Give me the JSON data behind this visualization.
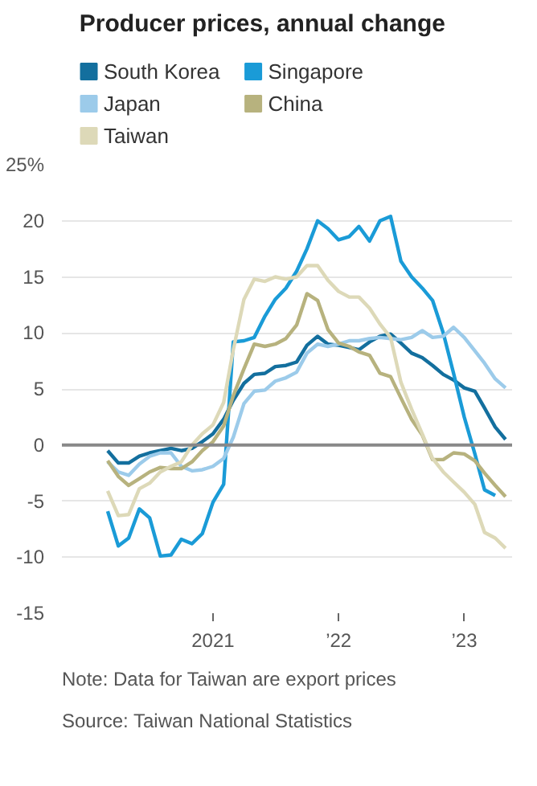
{
  "chart_data": {
    "type": "line",
    "title": "Producer prices, annual change",
    "x": [
      "2020-03",
      "2020-04",
      "2020-05",
      "2020-06",
      "2020-07",
      "2020-08",
      "2020-09",
      "2020-10",
      "2020-11",
      "2020-12",
      "2021-01",
      "2021-02",
      "2021-03",
      "2021-04",
      "2021-05",
      "2021-06",
      "2021-07",
      "2021-08",
      "2021-09",
      "2021-10",
      "2021-11",
      "2021-12",
      "2022-01",
      "2022-02",
      "2022-03",
      "2022-04",
      "2022-05",
      "2022-06",
      "2022-07",
      "2022-08",
      "2022-09",
      "2022-10",
      "2022-11",
      "2022-12",
      "2023-01",
      "2023-02",
      "2023-03",
      "2023-04",
      "2023-05"
    ],
    "series": [
      {
        "name": "South Korea",
        "color": "#136f9e",
        "values": [
          -0.5,
          -1.6,
          -1.6,
          -1.0,
          -0.7,
          -0.5,
          -0.3,
          -0.5,
          -0.3,
          0.3,
          1.0,
          2.3,
          4.0,
          5.5,
          6.3,
          6.4,
          7.0,
          7.1,
          7.4,
          8.9,
          9.7,
          9.0,
          8.9,
          8.7,
          8.5,
          9.2,
          9.7,
          9.9,
          9.1,
          8.2,
          7.8,
          7.1,
          6.3,
          5.8,
          5.1,
          4.8,
          3.3,
          1.6,
          0.5
        ]
      },
      {
        "name": "Singapore",
        "color": "#1a9bd7",
        "values": [
          -5.9,
          -9.0,
          -8.3,
          -5.7,
          -6.5,
          -9.9,
          -9.8,
          -8.4,
          -8.8,
          -7.9,
          -5.1,
          -3.5,
          9.2,
          9.3,
          9.6,
          11.5,
          13.0,
          14.0,
          15.5,
          17.5,
          20.0,
          19.3,
          18.3,
          18.6,
          19.5,
          18.2,
          20.0,
          20.4,
          16.4,
          15.0,
          14.0,
          12.9,
          10.0,
          6.4,
          2.5,
          -0.8,
          -4.0,
          -4.5,
          null
        ]
      },
      {
        "name": "Japan",
        "color": "#9ccbea",
        "values": [
          -1.5,
          -2.4,
          -2.7,
          -1.7,
          -1.0,
          -0.7,
          -0.7,
          -1.9,
          -2.3,
          -2.2,
          -1.9,
          -1.2,
          0.7,
          3.7,
          4.8,
          4.9,
          5.7,
          6.0,
          6.5,
          8.2,
          9.0,
          8.8,
          9.0,
          9.3,
          9.3,
          9.5,
          9.6,
          9.5,
          9.4,
          9.6,
          10.2,
          9.6,
          9.7,
          10.5,
          9.6,
          8.4,
          7.3,
          5.9,
          5.1
        ]
      },
      {
        "name": "China",
        "color": "#b7b27e",
        "values": [
          -1.4,
          -2.8,
          -3.6,
          -3.0,
          -2.4,
          -2.0,
          -2.1,
          -2.1,
          -1.5,
          -0.5,
          0.3,
          1.7,
          4.4,
          6.8,
          9.0,
          8.8,
          9.0,
          9.5,
          10.7,
          13.5,
          12.9,
          10.3,
          9.1,
          8.8,
          8.3,
          8.0,
          6.4,
          6.1,
          4.2,
          2.3,
          0.9,
          -1.3,
          -1.3,
          -0.7,
          -0.8,
          -1.4,
          -2.5,
          -3.6,
          -4.6
        ]
      },
      {
        "name": "Taiwan",
        "color": "#ddd9b8",
        "values": [
          -4.1,
          -6.3,
          -6.2,
          -3.9,
          -3.4,
          -2.4,
          -1.9,
          -1.5,
          0.0,
          1.0,
          1.8,
          3.8,
          8.5,
          13.0,
          14.8,
          14.6,
          15.0,
          14.8,
          15.0,
          16.0,
          16.0,
          14.7,
          13.7,
          13.2,
          13.2,
          12.2,
          10.8,
          9.6,
          5.6,
          3.2,
          1.0,
          -1.2,
          -2.4,
          -3.3,
          -4.2,
          -5.3,
          -7.8,
          -8.3,
          -9.2
        ]
      }
    ],
    "xlim": [
      "2019-10-20",
      "2023-05-20"
    ],
    "xticks": [
      {
        "value": "2021-01-01",
        "label": "2021"
      },
      {
        "value": "2022-01-01",
        "label": "’22"
      },
      {
        "value": "2023-01-01",
        "label": "’23"
      }
    ],
    "ylim": [
      -15,
      25
    ],
    "yticks": [
      -15,
      -10,
      -5,
      0,
      5,
      10,
      {
        "value": 25,
        "label": "25%"
      },
      15,
      20
    ],
    "ref_lines": [
      {
        "axis": "y",
        "value": 0,
        "color": "#888888"
      }
    ],
    "grid": "y",
    "legend": "top",
    "line_style": "solid",
    "annotations": [
      "Note: Data for Taiwan are export prices",
      "Source: Taiwan National Statistics"
    ]
  }
}
